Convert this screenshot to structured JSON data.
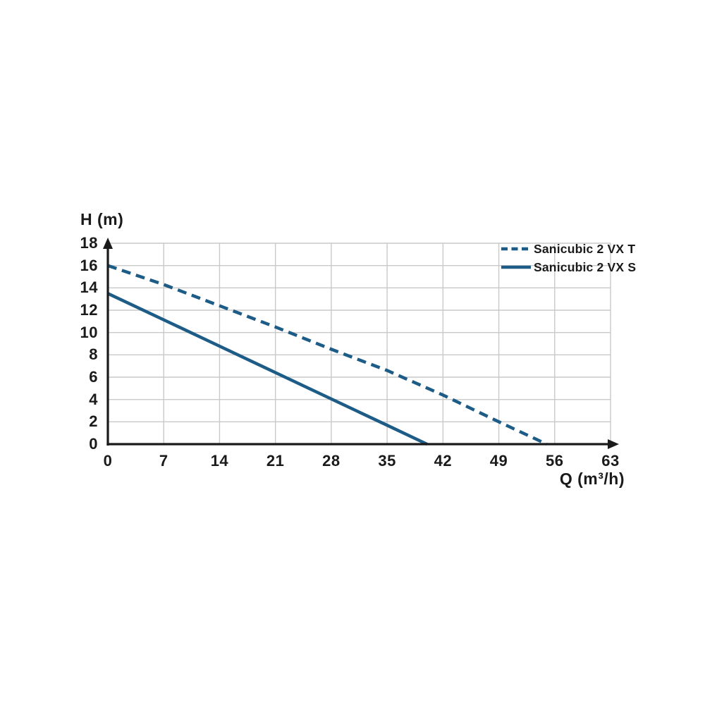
{
  "page": {
    "background": "#ffffff"
  },
  "chart_data": {
    "type": "line",
    "title": "",
    "xlabel": "Q (m³/h)",
    "ylabel": "H (m)",
    "xlim": [
      0,
      63
    ],
    "ylim": [
      0,
      18
    ],
    "xticks": [
      0,
      7,
      14,
      21,
      28,
      35,
      42,
      49,
      56,
      63
    ],
    "yticks": [
      0,
      2,
      4,
      6,
      8,
      10,
      12,
      14,
      16,
      18
    ],
    "grid": true,
    "legend_position": "top-right",
    "colors": {
      "line": "#1e5c88",
      "grid": "#c9c9c9",
      "axis": "#1a1a1a",
      "text": "#1a1a1a"
    },
    "series": [
      {
        "name": "Sanicubic 2 VX T",
        "line_style": "dashed",
        "points": [
          [
            0,
            16
          ],
          [
            7,
            14.3
          ],
          [
            14,
            12.4
          ],
          [
            21,
            10.5
          ],
          [
            28,
            8.5
          ],
          [
            35,
            6.6
          ],
          [
            42,
            4.4
          ],
          [
            49,
            2.0
          ],
          [
            55,
            0
          ]
        ]
      },
      {
        "name": "Sanicubic 2 VX S",
        "line_style": "solid",
        "points": [
          [
            0,
            13.5
          ],
          [
            7,
            11.14
          ],
          [
            14,
            8.78
          ],
          [
            21,
            6.41
          ],
          [
            28,
            4.05
          ],
          [
            35,
            1.69
          ],
          [
            40,
            0
          ]
        ]
      }
    ]
  }
}
